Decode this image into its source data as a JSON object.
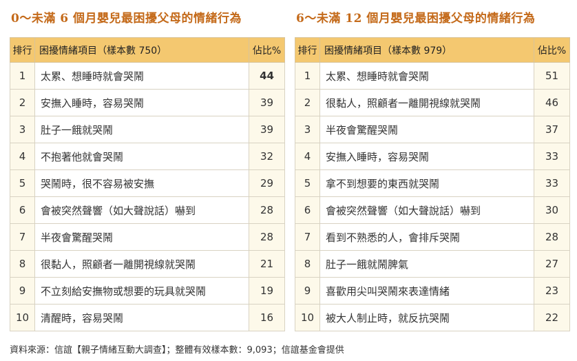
{
  "left": {
    "title": "0～未滿 6 個月嬰兒最困擾父母的情緒行為",
    "headers": {
      "rank": "排行",
      "item": "困擾情緒項目（樣本數 750）",
      "pct": "佔比%"
    },
    "rows": [
      {
        "rank": "1",
        "item": "太累、想睡時就會哭鬧",
        "pct": "44"
      },
      {
        "rank": "2",
        "item": "安撫入睡時，容易哭鬧",
        "pct": "39"
      },
      {
        "rank": "3",
        "item": "肚子一餓就哭鬧",
        "pct": "39"
      },
      {
        "rank": "4",
        "item": "不抱著他就會哭鬧",
        "pct": "32"
      },
      {
        "rank": "5",
        "item": "哭鬧時，很不容易被安撫",
        "pct": "29"
      },
      {
        "rank": "6",
        "item": "會被突然聲響（如大聲說話）嚇到",
        "pct": "28"
      },
      {
        "rank": "7",
        "item": "半夜會驚醒哭鬧",
        "pct": "28"
      },
      {
        "rank": "8",
        "item": "很黏人，照顧者一離開視線就哭鬧",
        "pct": "21"
      },
      {
        "rank": "9",
        "item": "不立刻給安撫物或想要的玩具就哭鬧",
        "pct": "19"
      },
      {
        "rank": "10",
        "item": "清醒時，容易哭鬧",
        "pct": "16"
      }
    ]
  },
  "right": {
    "title": "6～未滿 12 個月嬰兒最困擾父母的情緒行為",
    "headers": {
      "rank": "排行",
      "item": "困擾情緒項目（樣本數 979）",
      "pct": "佔比%"
    },
    "rows": [
      {
        "rank": "1",
        "item": "太累、想睡時就會哭鬧",
        "pct": "51"
      },
      {
        "rank": "2",
        "item": "很黏人，照顧者一離開視線就哭鬧",
        "pct": "46"
      },
      {
        "rank": "3",
        "item": "半夜會驚醒哭鬧",
        "pct": "37"
      },
      {
        "rank": "4",
        "item": "安撫入睡時，容易哭鬧",
        "pct": "33"
      },
      {
        "rank": "5",
        "item": "拿不到想要的東西就哭鬧",
        "pct": "33"
      },
      {
        "rank": "6",
        "item": "會被突然聲響（如大聲說話）嚇到",
        "pct": "30"
      },
      {
        "rank": "7",
        "item": "看到不熟悉的人，會排斥哭鬧",
        "pct": "28"
      },
      {
        "rank": "8",
        "item": "肚子一餓就鬧脾氣",
        "pct": "27"
      },
      {
        "rank": "9",
        "item": "喜歡用尖叫哭鬧來表達情緒",
        "pct": "23"
      },
      {
        "rank": "10",
        "item": "被大人制止時，就反抗哭鬧",
        "pct": "22"
      }
    ]
  },
  "source": "資料來源：信誼【親子情緒互動大調查】；整體有效樣本數：9,093；信誼基金會提供"
}
